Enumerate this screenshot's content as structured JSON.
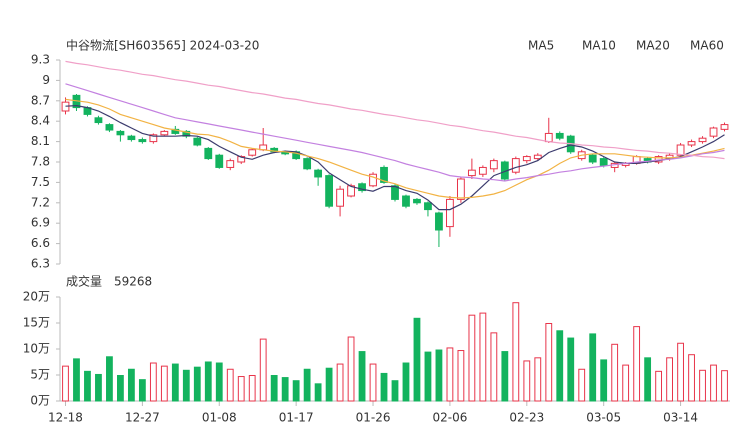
{
  "chart_data": [
    {
      "type": "candlestick",
      "title": "中谷物流[SH603565] 2024-03-20",
      "categories": [
        "12-18",
        null,
        null,
        null,
        null,
        null,
        null,
        "12-27",
        null,
        null,
        null,
        null,
        null,
        null,
        "01-08",
        null,
        null,
        null,
        null,
        null,
        null,
        "01-17",
        null,
        null,
        null,
        null,
        null,
        null,
        "01-26",
        null,
        null,
        null,
        null,
        null,
        null,
        "02-06",
        null,
        null,
        null,
        null,
        null,
        null,
        "02-23",
        null,
        null,
        null,
        null,
        null,
        null,
        "03-05",
        null,
        null,
        null,
        null,
        null,
        null,
        "03-14",
        null,
        null,
        null,
        null
      ],
      "open": [
        8.55,
        8.78,
        8.6,
        8.45,
        8.35,
        8.25,
        8.18,
        8.13,
        8.1,
        8.2,
        8.28,
        8.25,
        8.15,
        8.0,
        7.9,
        7.72,
        7.8,
        7.9,
        7.98,
        8.0,
        7.95,
        7.95,
        7.85,
        7.68,
        7.6,
        7.15,
        7.3,
        7.48,
        7.45,
        7.72,
        7.45,
        7.3,
        7.25,
        7.2,
        7.05,
        6.85,
        7.25,
        7.6,
        7.62,
        7.7,
        7.8,
        7.65,
        7.82,
        7.85,
        8.1,
        8.22,
        8.18,
        7.85,
        7.9,
        7.85,
        7.72,
        7.75,
        7.78,
        7.85,
        7.8,
        7.85,
        7.9,
        8.05,
        8.1,
        8.18,
        8.28
      ],
      "close": [
        8.68,
        8.6,
        8.5,
        8.38,
        8.27,
        8.2,
        8.13,
        8.1,
        8.2,
        8.25,
        8.22,
        8.18,
        8.05,
        7.85,
        7.72,
        7.82,
        7.88,
        7.98,
        8.05,
        7.95,
        7.92,
        7.85,
        7.7,
        7.58,
        7.15,
        7.4,
        7.45,
        7.38,
        7.62,
        7.5,
        7.25,
        7.15,
        7.2,
        7.1,
        6.8,
        7.25,
        7.55,
        7.68,
        7.72,
        7.82,
        7.55,
        7.85,
        7.88,
        7.9,
        8.22,
        8.15,
        7.95,
        7.95,
        7.8,
        7.75,
        7.78,
        7.78,
        7.88,
        7.8,
        7.88,
        7.9,
        8.05,
        8.1,
        8.15,
        8.3,
        8.35
      ],
      "high": [
        8.75,
        8.8,
        8.62,
        8.48,
        8.37,
        8.27,
        8.2,
        8.16,
        8.22,
        8.27,
        8.33,
        8.27,
        8.17,
        8.02,
        7.92,
        7.85,
        7.9,
        8.0,
        8.3,
        8.02,
        7.97,
        7.97,
        7.87,
        7.7,
        7.62,
        7.45,
        7.48,
        7.5,
        7.65,
        7.75,
        7.47,
        7.32,
        7.27,
        7.22,
        7.07,
        7.3,
        7.58,
        7.85,
        7.75,
        7.85,
        7.82,
        7.88,
        7.9,
        7.93,
        8.45,
        8.25,
        8.2,
        7.98,
        7.92,
        7.87,
        7.8,
        7.8,
        7.9,
        7.87,
        7.9,
        7.93,
        8.08,
        8.13,
        8.18,
        8.32,
        8.38
      ],
      "low": [
        8.5,
        8.55,
        8.47,
        8.35,
        8.24,
        8.1,
        8.1,
        8.07,
        8.07,
        8.18,
        8.2,
        8.15,
        8.03,
        7.83,
        7.7,
        7.68,
        7.77,
        7.88,
        7.96,
        7.93,
        7.9,
        7.83,
        7.68,
        7.45,
        7.12,
        7.0,
        7.28,
        7.35,
        7.43,
        7.48,
        7.22,
        7.12,
        7.17,
        7.0,
        6.55,
        6.7,
        7.2,
        7.55,
        7.58,
        7.65,
        7.52,
        7.62,
        7.78,
        7.82,
        8.08,
        8.12,
        7.92,
        7.82,
        7.77,
        7.72,
        7.65,
        7.72,
        7.76,
        7.78,
        7.77,
        7.82,
        7.87,
        8.02,
        8.07,
        8.15,
        8.25
      ],
      "up_color": "#e8344a",
      "down_color": "#13b35e",
      "series": [
        {
          "name": "MA5",
          "color": "#3c3c6e",
          "values": [
            8.62,
            8.63,
            8.6,
            8.55,
            8.47,
            8.38,
            8.3,
            8.22,
            8.18,
            8.18,
            8.18,
            8.19,
            8.18,
            8.13,
            8.03,
            7.95,
            7.87,
            7.84,
            7.9,
            7.94,
            7.96,
            7.95,
            7.89,
            7.8,
            7.64,
            7.54,
            7.44,
            7.4,
            7.37,
            7.44,
            7.44,
            7.38,
            7.34,
            7.24,
            7.1,
            7.1,
            7.18,
            7.3,
            7.45,
            7.6,
            7.66,
            7.72,
            7.76,
            7.82,
            7.94,
            8.0,
            8.05,
            8.02,
            7.96,
            7.88,
            7.8,
            7.78,
            7.78,
            7.8,
            7.82,
            7.85,
            7.88,
            7.95,
            8.02,
            8.1,
            8.2
          ]
        },
        {
          "name": "MA10",
          "color": "#f2b344",
          "values": [
            8.72,
            8.7,
            8.68,
            8.64,
            8.58,
            8.5,
            8.45,
            8.4,
            8.35,
            8.3,
            8.27,
            8.24,
            8.21,
            8.2,
            8.16,
            8.1,
            8.03,
            8.0,
            7.98,
            7.96,
            7.95,
            7.93,
            7.89,
            7.85,
            7.8,
            7.74,
            7.68,
            7.62,
            7.58,
            7.52,
            7.48,
            7.42,
            7.38,
            7.34,
            7.3,
            7.28,
            7.27,
            7.28,
            7.3,
            7.33,
            7.38,
            7.46,
            7.54,
            7.6,
            7.68,
            7.78,
            7.86,
            7.9,
            7.92,
            7.92,
            7.92,
            7.9,
            7.88,
            7.87,
            7.86,
            7.86,
            7.87,
            7.9,
            7.93,
            7.96,
            8.0
          ]
        },
        {
          "name": "MA20",
          "color": "#c381e0",
          "values": [
            8.95,
            8.9,
            8.85,
            8.8,
            8.75,
            8.7,
            8.65,
            8.6,
            8.55,
            8.5,
            8.45,
            8.42,
            8.39,
            8.36,
            8.33,
            8.3,
            8.27,
            8.24,
            8.21,
            8.18,
            8.15,
            8.12,
            8.09,
            8.06,
            8.03,
            8.0,
            7.97,
            7.94,
            7.9,
            7.86,
            7.82,
            7.77,
            7.73,
            7.69,
            7.65,
            7.6,
            7.58,
            7.57,
            7.55,
            7.54,
            7.52,
            7.55,
            7.57,
            7.6,
            7.62,
            7.65,
            7.67,
            7.7,
            7.72,
            7.74,
            7.76,
            7.78,
            7.8,
            7.81,
            7.83,
            7.84,
            7.86,
            7.89,
            7.92,
            7.94,
            7.97
          ]
        },
        {
          "name": "MA60",
          "color": "#f0a0c8",
          "values": [
            9.28,
            9.25,
            9.23,
            9.2,
            9.17,
            9.15,
            9.12,
            9.09,
            9.07,
            9.04,
            9.01,
            8.99,
            8.96,
            8.93,
            8.91,
            8.88,
            8.85,
            8.82,
            8.8,
            8.77,
            8.74,
            8.72,
            8.69,
            8.66,
            8.64,
            8.61,
            8.58,
            8.56,
            8.53,
            8.5,
            8.48,
            8.45,
            8.42,
            8.4,
            8.37,
            8.34,
            8.32,
            8.29,
            8.26,
            8.24,
            8.21,
            8.18,
            8.16,
            8.13,
            8.1,
            8.08,
            8.07,
            8.05,
            8.04,
            8.02,
            8.01,
            7.99,
            7.97,
            7.96,
            7.94,
            7.93,
            7.91,
            7.9,
            7.88,
            7.87,
            7.85
          ]
        }
      ],
      "ylim": [
        6.3,
        9.3
      ],
      "yticks": [
        9.3,
        9,
        8.7,
        8.4,
        8.1,
        7.8,
        7.5,
        7.2,
        6.9,
        6.6,
        6.3
      ],
      "grid": false
    },
    {
      "type": "bar",
      "title": "成交量",
      "latest": 59268,
      "values": [
        6.8,
        8.2,
        5.8,
        5.2,
        8.6,
        5.0,
        6.2,
        4.2,
        7.4,
        6.8,
        7.2,
        6.0,
        6.6,
        7.6,
        7.4,
        6.2,
        4.8,
        5.0,
        12.0,
        5.0,
        4.6,
        4.0,
        6.2,
        3.4,
        6.4,
        7.2,
        12.4,
        9.6,
        7.2,
        5.4,
        4.0,
        7.4,
        16.0,
        9.5,
        9.9,
        10.3,
        9.8,
        16.6,
        17.0,
        13.2,
        9.6,
        19.0,
        7.8,
        8.4,
        15.0,
        13.6,
        12.2,
        6.2,
        13.0,
        8.0,
        11.0,
        7.0,
        14.4,
        8.4,
        5.8,
        8.4,
        11.2,
        9.0,
        6.0,
        7.0,
        5.9268
      ],
      "ylim": [
        0,
        20
      ],
      "yticks": [
        {
          "value": 20,
          "label": "20万"
        },
        {
          "value": 15,
          "label": "15万"
        },
        {
          "value": 10,
          "label": "10万"
        },
        {
          "value": 5,
          "label": "5万"
        },
        {
          "value": 0,
          "label": "0万"
        }
      ]
    }
  ]
}
